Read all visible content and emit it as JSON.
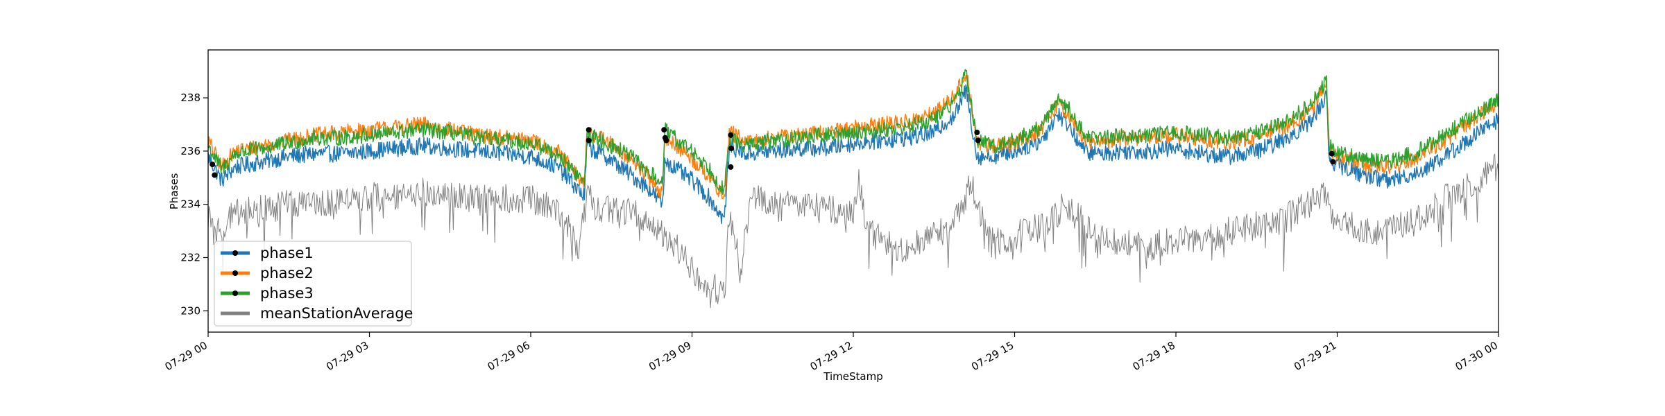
{
  "chart_data": {
    "type": "line",
    "xlabel": "TimeStamp",
    "ylabel": "Phases",
    "ylim": [
      229.2,
      239.8
    ],
    "xlim_hours": [
      0,
      24
    ],
    "x_ticks": [
      {
        "label": "07-29 00",
        "hour": 0
      },
      {
        "label": "07-29 03",
        "hour": 3
      },
      {
        "label": "07-29 06",
        "hour": 6
      },
      {
        "label": "07-29 09",
        "hour": 9
      },
      {
        "label": "07-29 12",
        "hour": 12
      },
      {
        "label": "07-29 15",
        "hour": 15
      },
      {
        "label": "07-29 18",
        "hour": 18
      },
      {
        "label": "07-29 21",
        "hour": 21
      },
      {
        "label": "07-30 00",
        "hour": 24
      }
    ],
    "y_ticks": [
      {
        "label": "230",
        "value": 230
      },
      {
        "label": "232",
        "value": 232
      },
      {
        "label": "234",
        "value": 234
      },
      {
        "label": "236",
        "value": 236
      },
      {
        "label": "238",
        "value": 238
      }
    ],
    "grid": false,
    "legend_position": "lower-left",
    "series": [
      {
        "name": "phase1",
        "color": "#1f77b4",
        "x": [
          0,
          0.25,
          0.5,
          1,
          1.5,
          2,
          2.5,
          3,
          3.5,
          4,
          4.5,
          5,
          5.5,
          6,
          6.5,
          7,
          7.05,
          7.1,
          7.4,
          7.8,
          8.2,
          8.45,
          8.5,
          8.6,
          9,
          9.3,
          9.6,
          9.7,
          9.8,
          10,
          10.5,
          11,
          11.5,
          12,
          12.5,
          13,
          13.5,
          13.9,
          14.1,
          14.3,
          14.6,
          15,
          15.5,
          15.8,
          16,
          16.3,
          16.6,
          17,
          17.5,
          18,
          18.5,
          19,
          19.5,
          20,
          20.5,
          20.8,
          20.85,
          21,
          21.5,
          22,
          22.5,
          23,
          23.5,
          24
        ],
        "y": [
          235.8,
          234.9,
          235.4,
          235.6,
          235.8,
          235.9,
          235.9,
          236,
          236.1,
          236.2,
          236.1,
          236,
          235.9,
          235.8,
          235.4,
          234.3,
          236.4,
          236.1,
          235.8,
          235.2,
          234.6,
          234,
          235.7,
          235.5,
          234.9,
          234.3,
          233.4,
          236.3,
          236.1,
          235.9,
          236.0,
          236.1,
          236.1,
          236.3,
          236.4,
          236.5,
          236.7,
          237.4,
          238.3,
          235.8,
          235.8,
          236.0,
          236.4,
          237.4,
          237.0,
          236.0,
          235.9,
          236.0,
          236.0,
          236.1,
          235.9,
          235.8,
          236.0,
          236.4,
          237.1,
          238.1,
          235.7,
          235.5,
          235.1,
          234.9,
          235.2,
          235.8,
          236.5,
          237.2
        ]
      },
      {
        "name": "phase2",
        "color": "#ff7f0e",
        "x": [
          0,
          0.25,
          0.5,
          1,
          1.5,
          2,
          2.5,
          3,
          3.5,
          4,
          4.5,
          5,
          5.5,
          6,
          6.5,
          7,
          7.05,
          7.1,
          7.4,
          7.8,
          8.2,
          8.45,
          8.5,
          8.6,
          9,
          9.3,
          9.6,
          9.7,
          9.8,
          10,
          10.5,
          11,
          11.5,
          12,
          12.5,
          13,
          13.5,
          13.9,
          14.1,
          14.3,
          14.6,
          15,
          15.5,
          15.8,
          16,
          16.3,
          16.6,
          17,
          17.5,
          18,
          18.5,
          19,
          19.5,
          20,
          20.5,
          20.8,
          20.85,
          21,
          21.5,
          22,
          22.5,
          23,
          23.5,
          24
        ],
        "y": [
          236.4,
          235.4,
          236.0,
          236.2,
          236.4,
          236.6,
          236.7,
          236.8,
          236.9,
          237.0,
          236.8,
          236.6,
          236.5,
          236.4,
          236.0,
          234.7,
          236.9,
          236.7,
          236.4,
          235.8,
          235.0,
          234.4,
          236.5,
          236.4,
          235.7,
          235.1,
          234.2,
          236.8,
          236.6,
          236.3,
          236.5,
          236.6,
          236.7,
          236.9,
          237.0,
          237.1,
          237.4,
          238.1,
          239.0,
          236.3,
          236.2,
          236.3,
          236.8,
          237.8,
          237.4,
          236.4,
          236.3,
          236.5,
          236.5,
          236.6,
          236.4,
          236.3,
          236.5,
          236.9,
          237.5,
          238.6,
          236.0,
          235.9,
          235.5,
          235.4,
          235.8,
          236.4,
          237.1,
          237.9
        ]
      },
      {
        "name": "phase3",
        "color": "#2ca02c",
        "x": [
          0,
          0.25,
          0.5,
          1,
          1.5,
          2,
          2.5,
          3,
          3.5,
          4,
          4.5,
          5,
          5.5,
          6,
          6.5,
          7,
          7.05,
          7.1,
          7.4,
          7.8,
          8.2,
          8.45,
          8.5,
          8.6,
          9,
          9.3,
          9.6,
          9.7,
          9.8,
          10,
          10.5,
          11,
          11.5,
          12,
          12.5,
          13,
          13.5,
          13.9,
          14.1,
          14.3,
          14.6,
          15,
          15.5,
          15.8,
          16,
          16.3,
          16.6,
          17,
          17.5,
          18,
          18.5,
          19,
          19.5,
          20,
          20.5,
          20.8,
          20.85,
          21,
          21.5,
          22,
          22.5,
          23,
          23.5,
          24
        ],
        "y": [
          236.2,
          235.3,
          235.9,
          236.1,
          236.3,
          236.5,
          236.5,
          236.6,
          236.7,
          236.8,
          236.7,
          236.5,
          236.4,
          236.3,
          235.9,
          234.8,
          236.7,
          236.6,
          236.3,
          235.9,
          235.2,
          234.8,
          236.8,
          236.6,
          236.0,
          235.4,
          234.5,
          236.5,
          236.4,
          236.2,
          236.4,
          236.5,
          236.6,
          236.7,
          236.8,
          236.9,
          237.2,
          237.9,
          238.9,
          236.4,
          236.2,
          236.4,
          236.9,
          238.0,
          237.6,
          236.6,
          236.5,
          236.6,
          236.6,
          236.7,
          236.6,
          236.5,
          236.7,
          237.1,
          237.7,
          238.6,
          236.2,
          236.0,
          235.7,
          235.6,
          236.0,
          236.6,
          237.3,
          237.9
        ]
      },
      {
        "name": "meanStationAverage",
        "color": "#808080",
        "x": [
          0,
          0.1,
          0.3,
          0.6,
          1,
          1.5,
          2,
          2.5,
          3,
          3.5,
          4,
          4.5,
          5,
          5.5,
          6,
          6.5,
          6.9,
          7.05,
          7.2,
          7.6,
          8,
          8.3,
          8.5,
          8.8,
          9.0,
          9.3,
          9.6,
          9.7,
          9.9,
          10.1,
          10.3,
          10.6,
          11,
          11.5,
          12,
          12.1,
          12.3,
          12.6,
          13,
          13.4,
          13.8,
          14.2,
          14.5,
          14.8,
          15.2,
          15.6,
          15.9,
          16.2,
          16.5,
          17,
          17.5,
          18,
          18.5,
          19,
          19.5,
          20,
          20.4,
          20.8,
          20.9,
          21.2,
          21.6,
          22,
          22.4,
          22.8,
          23.2,
          23.6,
          24
        ],
        "y": [
          233.7,
          232.8,
          233.3,
          233.8,
          233.8,
          234.0,
          234.1,
          234.1,
          234.3,
          234.2,
          234.5,
          234.3,
          234.2,
          234.2,
          234.2,
          233.8,
          232.4,
          234.4,
          233.9,
          233.8,
          233.6,
          233.2,
          232.8,
          232.2,
          231.5,
          231.0,
          230.6,
          233.8,
          231.5,
          234.3,
          234.3,
          233.9,
          234.0,
          233.8,
          233.7,
          234.8,
          232.9,
          232.6,
          232.3,
          232.9,
          233.0,
          234.8,
          232.7,
          232.6,
          233.0,
          233.2,
          233.9,
          233.5,
          232.7,
          232.5,
          232.4,
          232.7,
          232.6,
          233.0,
          233.2,
          233.4,
          234.0,
          234.3,
          233.5,
          233.2,
          233.0,
          233.1,
          233.3,
          233.9,
          234.5,
          234.9,
          235.5
        ]
      }
    ],
    "markers": [
      {
        "hour": 0.08,
        "value": 235.5
      },
      {
        "hour": 0.12,
        "value": 235.1
      },
      {
        "hour": 7.08,
        "value": 236.8
      },
      {
        "hour": 7.08,
        "value": 236.4
      },
      {
        "hour": 8.48,
        "value": 236.8
      },
      {
        "hour": 8.5,
        "value": 236.5
      },
      {
        "hour": 8.52,
        "value": 236.4
      },
      {
        "hour": 9.72,
        "value": 236.6
      },
      {
        "hour": 9.73,
        "value": 236.1
      },
      {
        "hour": 9.72,
        "value": 235.4
      },
      {
        "hour": 14.3,
        "value": 236.7
      },
      {
        "hour": 14.32,
        "value": 236.4
      },
      {
        "hour": 20.9,
        "value": 235.9
      },
      {
        "hour": 20.92,
        "value": 235.6
      }
    ]
  }
}
